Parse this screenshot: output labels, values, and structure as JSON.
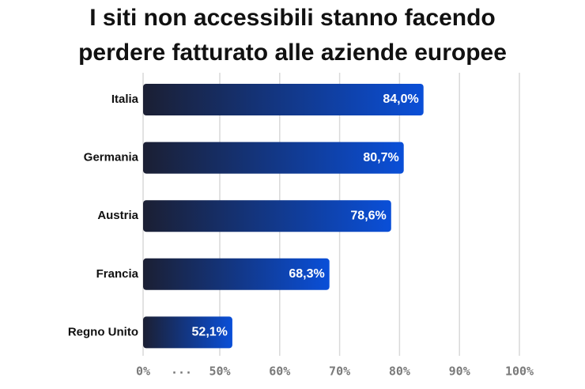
{
  "chart_data": {
    "type": "bar",
    "orientation": "horizontal",
    "title": [
      "I siti non accessibili stanno facendo",
      "perdere fatturato alle aziende europee"
    ],
    "categories": [
      "Italia",
      "Germania",
      "Austria",
      "Francia",
      "Regno Unito"
    ],
    "values": [
      84.0,
      80.7,
      78.6,
      68.3,
      52.1
    ],
    "value_labels": [
      "84,0%",
      "80,7%",
      "78,6%",
      "68,3%",
      "52,1%"
    ],
    "color": [
      "#1b1f33",
      "#0a4fd8"
    ],
    "xlim": [
      0,
      100
    ],
    "axis_break": [
      0,
      50
    ],
    "axis_break_label": "...",
    "xticks": [
      {
        "value": 0,
        "label": "0%"
      },
      {
        "value": 50,
        "label": "50%"
      },
      {
        "value": 60,
        "label": "60%"
      },
      {
        "value": 70,
        "label": "70%"
      },
      {
        "value": 80,
        "label": "80%"
      },
      {
        "value": 90,
        "label": "90%"
      },
      {
        "value": 100,
        "label": "100%"
      }
    ],
    "grid": true
  }
}
